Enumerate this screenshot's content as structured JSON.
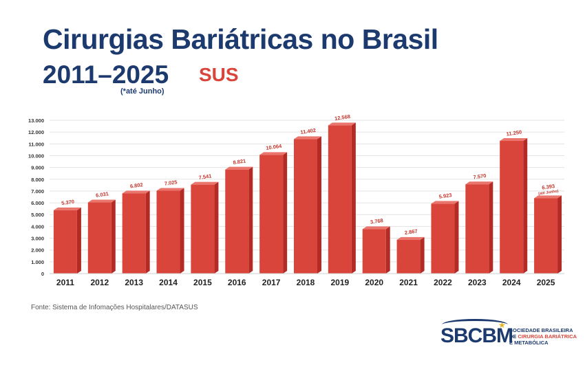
{
  "header": {
    "title_line1": "Cirurgias Bariátricas no Brasil",
    "title_line2": "2011–2025",
    "tag": "SUS",
    "note": "(*até Junho)"
  },
  "chart_data": {
    "type": "bar",
    "categories": [
      "2011",
      "2012",
      "2013",
      "2014",
      "2015",
      "2016",
      "2017",
      "2018",
      "2019",
      "2020",
      "2021",
      "2022",
      "2023",
      "2024",
      "2025"
    ],
    "values": [
      5370,
      6031,
      6802,
      7025,
      7541,
      8821,
      10064,
      11402,
      12568,
      3768,
      2867,
      5923,
      7570,
      11250,
      6393
    ],
    "value_labels": [
      "5.370",
      "6.031",
      "6.802",
      "7.025",
      "7.541",
      "8.821",
      "10.064",
      "11.402",
      "12.568",
      "3.768",
      "2.867",
      "5.923",
      "7.570",
      "11.250",
      "6.393"
    ],
    "value_label_notes": [
      "",
      "",
      "",
      "",
      "",
      "",
      "",
      "",
      "",
      "",
      "",
      "",
      "",
      "",
      "(até Junho)"
    ],
    "y_ticks": [
      "0",
      "1.000",
      "2.000",
      "3.000",
      "4.000",
      "5.000",
      "6.000",
      "7.000",
      "8.000",
      "9.000",
      "10.000",
      "11.000",
      "12.000",
      "13.000"
    ],
    "ylim": [
      0,
      13000
    ],
    "grid": true,
    "bar_color": "#d9453b",
    "bar_side_color": "#b32b24",
    "bar_top_color": "#e9756c"
  },
  "footer": {
    "source": "Fonte: Sistema de Infomações Hospitalares/DATASUS"
  },
  "logo": {
    "mark": "SBCBM",
    "line1": "SOCIEDADE BRASILEIRA",
    "line2_pre": "DE ",
    "line2_red": "CIRURGIA BARIÁTRICA",
    "line3": "E METABÓLICA"
  }
}
